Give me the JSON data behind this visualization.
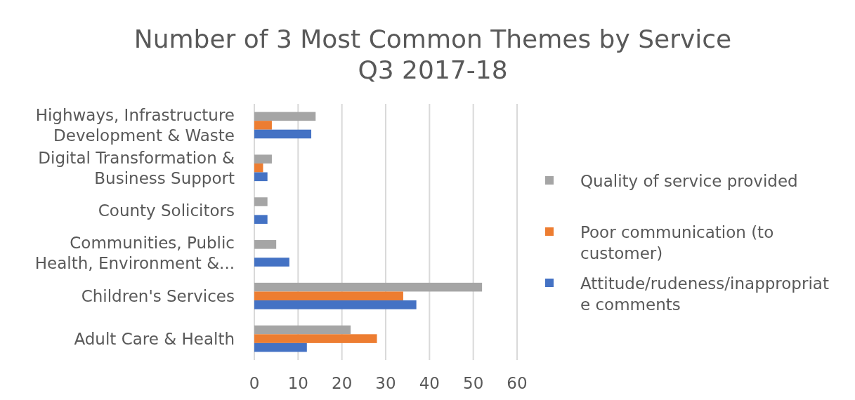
{
  "chart_data": {
    "type": "bar",
    "orientation": "horizontal",
    "title": "Number of 3 Most Common Themes by Service",
    "subtitle": "Q3 2017-18",
    "categories": [
      "Highways, Infrastructure Development & Waste",
      "Digital Transformation & Business Support",
      "County Solicitors",
      "Communities, Public Health, Environment &...",
      "Children's Services",
      "Adult Care & Health"
    ],
    "series": [
      {
        "name": "Quality of service provided",
        "color": "#a5a5a5",
        "values": [
          14,
          4,
          3,
          5,
          52,
          22
        ]
      },
      {
        "name": "Poor communication (to customer)",
        "color": "#ed7d31",
        "values": [
          4,
          2,
          null,
          null,
          34,
          28
        ]
      },
      {
        "name": "Attitude/rudeness/inappropriate comments",
        "color": "#4472c4",
        "values": [
          13,
          3,
          3,
          8,
          37,
          12
        ]
      }
    ],
    "xlim": [
      0,
      60
    ],
    "xticks": [
      0,
      10,
      20,
      30,
      40,
      50,
      60
    ],
    "grid": "x",
    "legend": "right"
  }
}
